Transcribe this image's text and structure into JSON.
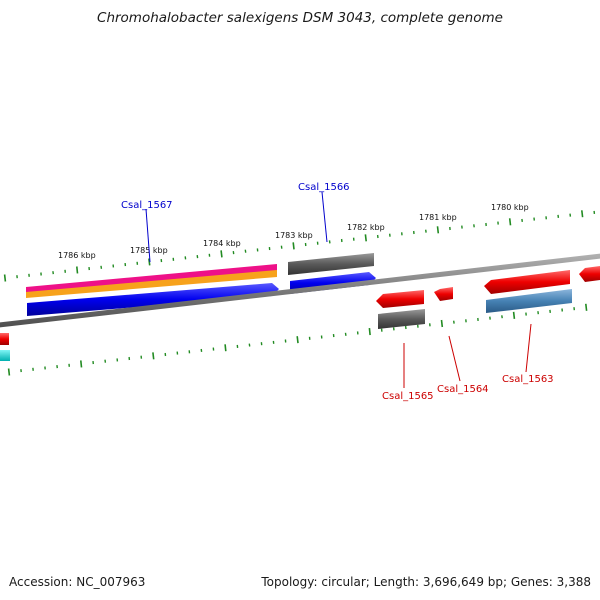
{
  "title": "Chromohalobacter salexigens DSM 3043, complete genome",
  "footer": {
    "accession": "Accession: NC_007963",
    "summary": "Topology: circular; Length: 3,696,649 bp; Genes: 3,388"
  },
  "ruler": {
    "labels": [
      "1786 kbp",
      "1785 kbp",
      "1784 kbp",
      "1783 kbp",
      "1782 kbp",
      "1781 kbp",
      "1780 kbp"
    ]
  },
  "genes": [
    {
      "label": "Csal_1567",
      "strand": "forward",
      "color": "#0000cc"
    },
    {
      "label": "Csal_1566",
      "strand": "forward",
      "color": "#0000cc"
    },
    {
      "label": "Csal_1565",
      "strand": "reverse",
      "color": "#cc0000"
    },
    {
      "label": "Csal_1564",
      "strand": "reverse",
      "color": "#cc0000"
    },
    {
      "label": "Csal_1563",
      "strand": "reverse",
      "color": "#cc0000"
    }
  ],
  "colors": {
    "forward_cds": "#0000ee",
    "reverse_cds": "#ee0000",
    "gray_feature": "#5a5a5a",
    "backbone": "#808080",
    "tick": "#228b22",
    "magenta_feature": "#ee1188",
    "orange_feature": "#f7a21b",
    "steelblue_feature": "#4682b4",
    "cyan_feature": "#00cccc"
  }
}
